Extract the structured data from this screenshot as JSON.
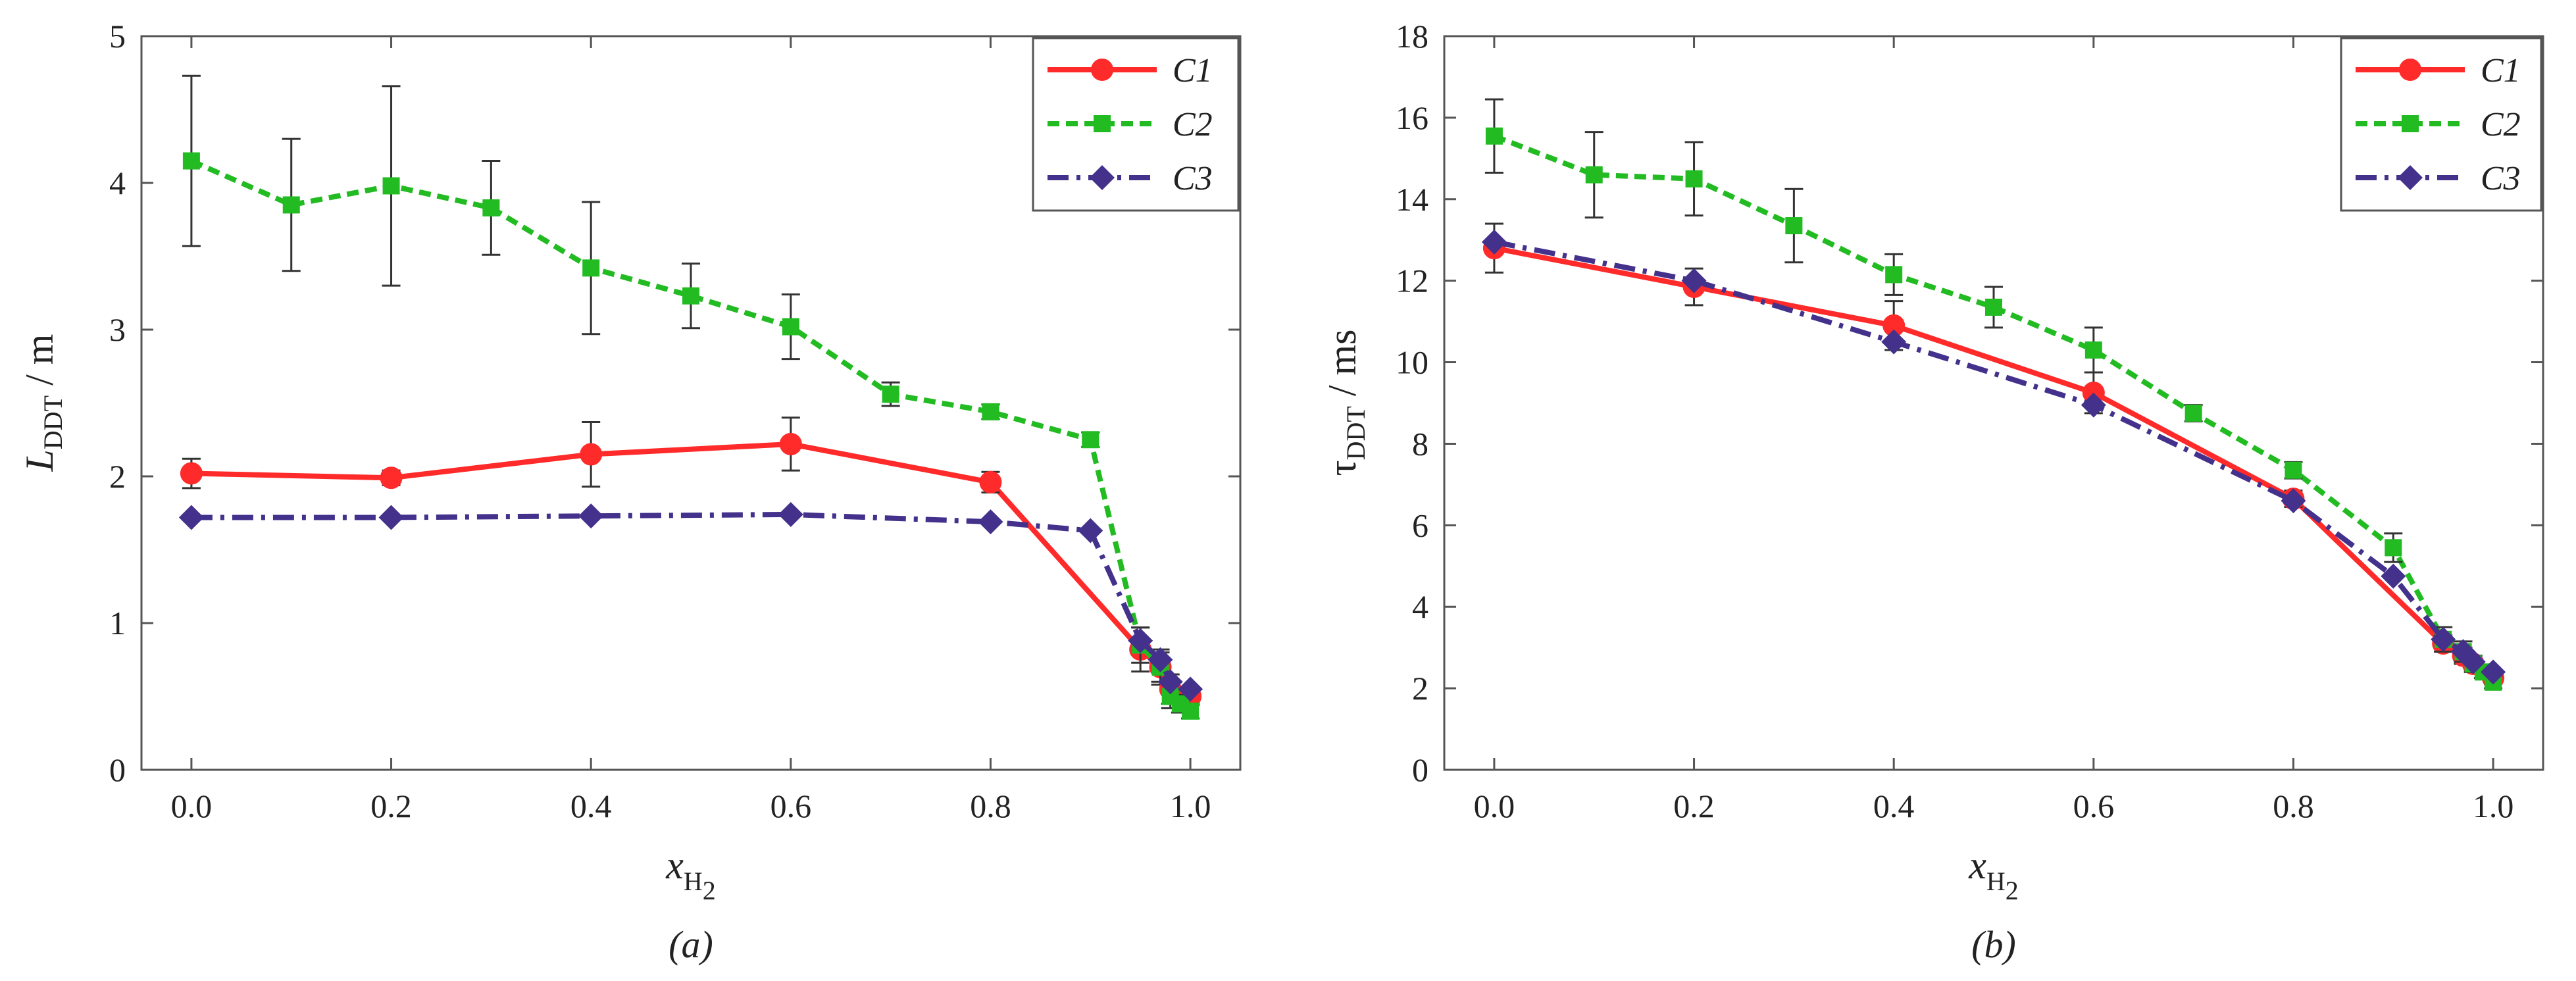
{
  "chart_data": [
    {
      "type": "line",
      "panel": "a",
      "caption": "(a)",
      "xlabel": {
        "main": "x",
        "sub": "H",
        "subsub": "2"
      },
      "ylabel": {
        "main": "L",
        "sub": "DDT",
        "unit": " / m"
      },
      "xlim": [
        -0.05,
        1.05
      ],
      "ylim": [
        0,
        5
      ],
      "xticks": [
        0,
        0.2,
        0.4,
        0.6,
        0.8,
        1.0
      ],
      "xtick_labels": [
        "0.0",
        "0.2",
        "0.4",
        "0.6",
        "0.8",
        "1.0"
      ],
      "yticks": [
        0,
        1,
        2,
        3,
        4,
        5
      ],
      "ytick_labels": [
        "0",
        "1",
        "2",
        "3",
        "4",
        "5"
      ],
      "grid": false,
      "legend_position": "top-right",
      "series": [
        {
          "name": "C1",
          "color": "#ff2a2a",
          "marker": "circle",
          "dash": "solid",
          "x": [
            0,
            0.2,
            0.4,
            0.6,
            0.8,
            0.95,
            0.97,
            0.98,
            1.0
          ],
          "y": [
            2.02,
            1.99,
            2.15,
            2.22,
            1.96,
            0.82,
            0.7,
            0.55,
            0.5
          ],
          "err": [
            0.1,
            0.05,
            0.22,
            0.18,
            0.07,
            0.15,
            0.12,
            0.1,
            0.06
          ]
        },
        {
          "name": "C2",
          "color": "#22bb22",
          "marker": "square",
          "dash": "dashed",
          "x": [
            0,
            0.1,
            0.2,
            0.3,
            0.4,
            0.5,
            0.6,
            0.7,
            0.8,
            0.9,
            0.95,
            0.97,
            0.98,
            0.99,
            1.0
          ],
          "y": [
            4.15,
            3.85,
            3.98,
            3.83,
            3.42,
            3.23,
            3.02,
            2.56,
            2.44,
            2.25,
            0.85,
            0.7,
            0.5,
            0.45,
            0.4
          ],
          "err": [
            0.58,
            0.45,
            0.68,
            0.32,
            0.45,
            0.22,
            0.22,
            0.08,
            0.05,
            0.05,
            0.12,
            0.1,
            0.08,
            0.06,
            0.05
          ]
        },
        {
          "name": "C3",
          "color": "#43318c",
          "marker": "diamond",
          "dash": "dashdot",
          "x": [
            0,
            0.2,
            0.4,
            0.6,
            0.8,
            0.9,
            0.95,
            0.97,
            0.98,
            1.0
          ],
          "y": [
            1.72,
            1.72,
            1.73,
            1.74,
            1.69,
            1.63,
            0.88,
            0.75,
            0.6,
            0.55
          ],
          "err": [
            0,
            0,
            0,
            0,
            0,
            0,
            0,
            0,
            0,
            0
          ]
        }
      ]
    },
    {
      "type": "line",
      "panel": "b",
      "caption": "(b)",
      "xlabel": {
        "main": "x",
        "sub": "H",
        "subsub": "2"
      },
      "ylabel": {
        "main": "τ",
        "sub": "DDT",
        "unit": " / ms"
      },
      "xlim": [
        -0.05,
        1.05
      ],
      "ylim": [
        0,
        18
      ],
      "xticks": [
        0,
        0.2,
        0.4,
        0.6,
        0.8,
        1.0
      ],
      "xtick_labels": [
        "0.0",
        "0.2",
        "0.4",
        "0.6",
        "0.8",
        "1.0"
      ],
      "yticks": [
        0,
        2,
        4,
        6,
        8,
        10,
        12,
        14,
        16,
        18
      ],
      "ytick_labels": [
        "0",
        "2",
        "4",
        "6",
        "8",
        "10",
        "12",
        "14",
        "16",
        "18"
      ],
      "grid": false,
      "legend_position": "top-right",
      "series": [
        {
          "name": "C1",
          "color": "#ff2a2a",
          "marker": "circle",
          "dash": "solid",
          "x": [
            0,
            0.2,
            0.4,
            0.6,
            0.8,
            0.95,
            0.97,
            0.98,
            1.0
          ],
          "y": [
            12.8,
            11.85,
            10.9,
            9.25,
            6.65,
            3.1,
            2.8,
            2.6,
            2.25
          ],
          "err": [
            0.6,
            0.45,
            0.6,
            0.5,
            0.2,
            0.2,
            0.2,
            0.15,
            0.15
          ]
        },
        {
          "name": "C2",
          "color": "#22bb22",
          "marker": "square",
          "dash": "dashed",
          "x": [
            0,
            0.1,
            0.2,
            0.3,
            0.4,
            0.5,
            0.6,
            0.7,
            0.8,
            0.9,
            0.95,
            0.97,
            0.98,
            0.99,
            1.0
          ],
          "y": [
            15.55,
            14.6,
            14.5,
            13.35,
            12.15,
            11.35,
            10.3,
            8.75,
            7.35,
            5.45,
            3.2,
            2.9,
            2.6,
            2.4,
            2.15
          ],
          "err": [
            0.9,
            1.05,
            0.9,
            0.9,
            0.5,
            0.5,
            0.55,
            0.2,
            0.2,
            0.35,
            0.3,
            0.25,
            0.2,
            0.15,
            0.15
          ]
        },
        {
          "name": "C3",
          "color": "#43318c",
          "marker": "diamond",
          "dash": "dashdot",
          "x": [
            0,
            0.2,
            0.4,
            0.6,
            0.8,
            0.9,
            0.95,
            0.97,
            0.98,
            1.0
          ],
          "y": [
            12.95,
            12.0,
            10.5,
            8.95,
            6.6,
            4.75,
            3.2,
            2.9,
            2.65,
            2.4
          ],
          "err": [
            0,
            0,
            0,
            0,
            0,
            0,
            0,
            0,
            0,
            0
          ]
        }
      ]
    }
  ]
}
